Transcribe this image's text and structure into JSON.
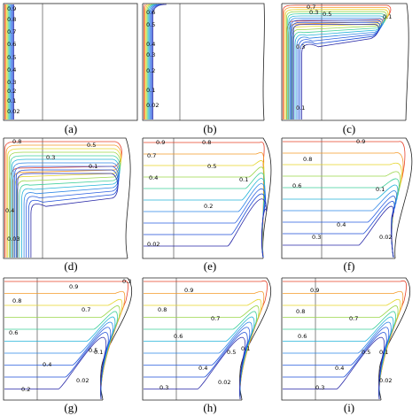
{
  "figure": {
    "panels": [
      {
        "caption": "(a)",
        "labels": [
          "0.9",
          "0.8",
          "0.7",
          "0.6",
          "0.5",
          "0.4",
          "0.3",
          "0.2",
          "0.1",
          "0.02"
        ]
      },
      {
        "caption": "(b)",
        "labels": [
          "0.6",
          "0.5",
          "0.4",
          "0.3",
          "0.2",
          "0.1",
          "0.02"
        ]
      },
      {
        "caption": "(c)",
        "labels": [
          "0.7",
          "0.5",
          "0.3",
          "0.1",
          "0.3",
          "0.1"
        ]
      },
      {
        "caption": "(d)",
        "labels": [
          "0.8",
          "0.5",
          "0.3",
          "0.1",
          "0.4",
          "0.03"
        ]
      },
      {
        "caption": "(e)",
        "labels": [
          "0.9",
          "0.8",
          "0.7",
          "0.5",
          "0.4",
          "0.2",
          "0.1",
          "0.02"
        ]
      },
      {
        "caption": "(f)",
        "labels": [
          "0.9",
          "0.8",
          "0.6",
          "0.4",
          "0.3",
          "0.1",
          "0.02"
        ]
      },
      {
        "caption": "(g)",
        "labels": [
          "0.9",
          "0.8",
          "0.7",
          "0.6",
          "0.5",
          "0.4",
          "0.2",
          "0.1",
          "0.02",
          "0.3"
        ]
      },
      {
        "caption": "(h)",
        "labels": [
          "0.9",
          "0.8",
          "0.7",
          "0.6",
          "0.5",
          "0.4",
          "0.3",
          "0.1",
          "0.02"
        ]
      },
      {
        "caption": "(i)",
        "labels": [
          "0.9",
          "0.8",
          "0.7",
          "0.6",
          "0.5",
          "0.4",
          "0.3",
          "0.1",
          "0.02"
        ]
      }
    ],
    "level_colors": {
      "0.02": "#2a2aa8",
      "0.1": "#1f4fd8",
      "0.2": "#2a5fe0",
      "0.3": "#2e86e6",
      "0.4": "#22b3d9",
      "0.5": "#3fcf9a",
      "0.6": "#9bd64a",
      "0.7": "#e6d52a",
      "0.8": "#f59a2a",
      "0.9": "#e8412a"
    }
  }
}
